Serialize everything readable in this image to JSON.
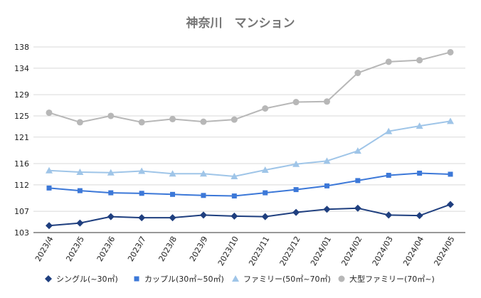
{
  "chart_data": {
    "type": "line",
    "title": "神奈川　マンション",
    "xlabel": "",
    "ylabel": "",
    "categories": [
      "2023/4",
      "2023/5",
      "2023/6",
      "2023/7",
      "2023/8",
      "2023/9",
      "2023/10",
      "2023/11",
      "2023/12",
      "2024/01",
      "2024/02",
      "2024/03",
      "2024/04",
      "2024/05"
    ],
    "ylim": [
      103,
      138
    ],
    "yticks": [
      103,
      107,
      112,
      116,
      121,
      125,
      129,
      134,
      138
    ],
    "grid": true,
    "legend_position": "bottom",
    "series": [
      {
        "name": "シングル(~30㎡)",
        "color": "#1f3f7f",
        "marker": "diamond",
        "values": [
          104.3,
          104.8,
          106.0,
          105.8,
          105.8,
          106.3,
          106.1,
          106.0,
          106.8,
          107.4,
          107.6,
          106.3,
          106.2,
          108.3
        ]
      },
      {
        "name": "カップル(30㎡~50㎡)",
        "color": "#3c78d8",
        "marker": "square",
        "values": [
          111.4,
          110.9,
          110.5,
          110.4,
          110.2,
          110.0,
          109.9,
          110.5,
          111.1,
          111.8,
          112.8,
          113.8,
          114.2,
          114.0
        ]
      },
      {
        "name": "ファミリー(50㎡~70㎡)",
        "color": "#9fc5e8",
        "marker": "triangle",
        "values": [
          114.7,
          114.4,
          114.3,
          114.6,
          114.1,
          114.1,
          113.6,
          114.8,
          115.9,
          116.5,
          118.4,
          122.1,
          123.1,
          124.0
        ]
      },
      {
        "name": "大型ファミリー(70㎡~)",
        "color": "#b7b7b7",
        "marker": "circle",
        "values": [
          125.6,
          123.8,
          125.0,
          123.8,
          124.4,
          123.9,
          124.3,
          126.4,
          127.6,
          127.7,
          133.1,
          135.2,
          135.5,
          137.0
        ]
      }
    ]
  }
}
